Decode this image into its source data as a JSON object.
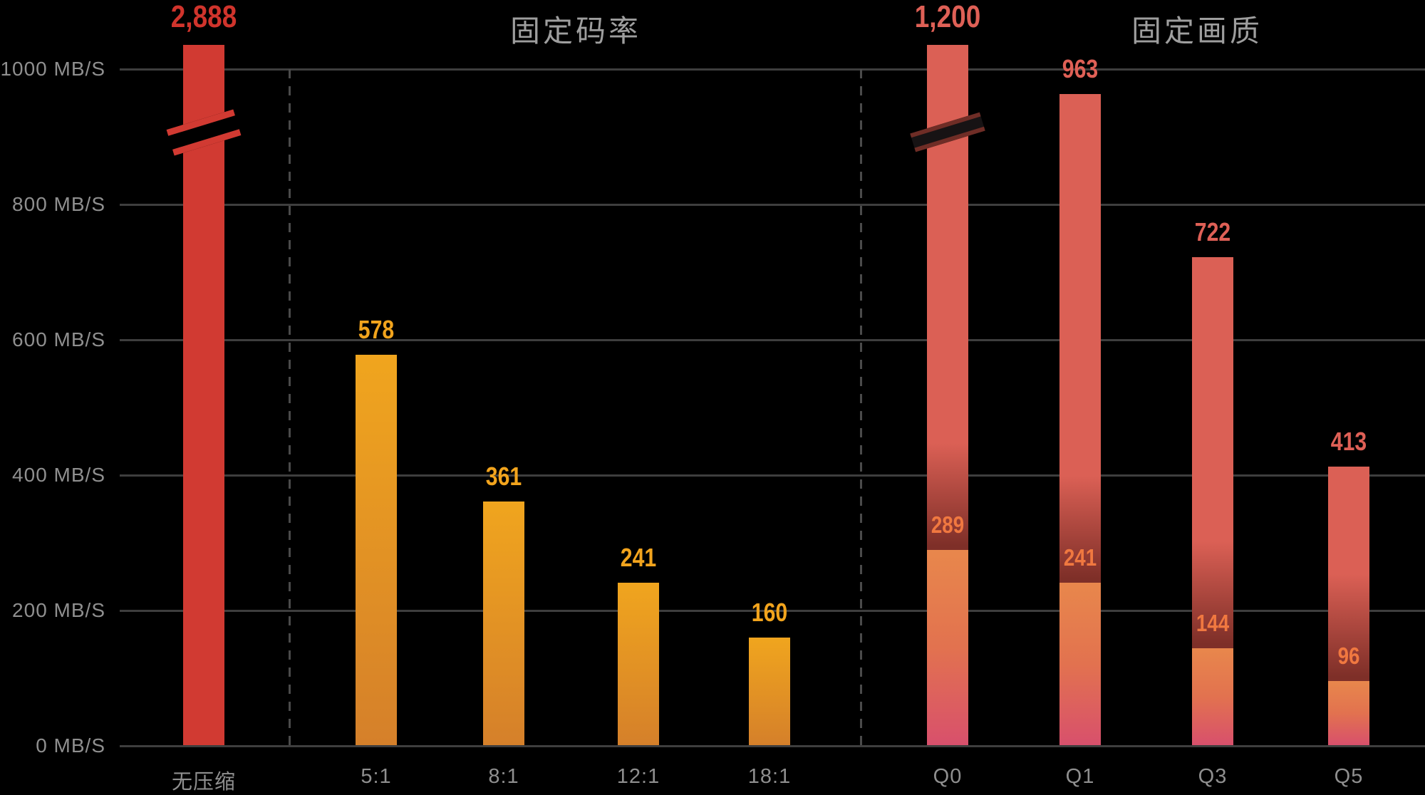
{
  "page": {
    "background": "#000000"
  },
  "chart_data": {
    "type": "bar",
    "unit": "MB/S",
    "y_ticks": [
      0,
      200,
      400,
      600,
      800,
      1000
    ],
    "y_tick_labels": [
      "0 MB/S",
      "200 MB/S",
      "400 MB/S",
      "600 MB/S",
      "800 MB/S",
      "1000 MB/S"
    ],
    "ylim": [
      0,
      1040
    ],
    "grid": true,
    "sections": [
      {
        "title": "固定码率",
        "categories": [
          "5:1",
          "8:1",
          "12:1",
          "18:1"
        ]
      },
      {
        "title": "固定画质",
        "categories": [
          "Q0",
          "Q1",
          "Q3",
          "Q5"
        ]
      }
    ],
    "bars": [
      {
        "id": "uncompressed",
        "category": "无压缩",
        "value": 2888,
        "label": "2,888",
        "style": "red",
        "clipped": true
      },
      {
        "id": "5-1",
        "category": "5:1",
        "value": 578,
        "label": "578",
        "style": "orange"
      },
      {
        "id": "8-1",
        "category": "8:1",
        "value": 361,
        "label": "361",
        "style": "orange"
      },
      {
        "id": "12-1",
        "category": "12:1",
        "value": 241,
        "label": "241",
        "style": "orange"
      },
      {
        "id": "18-1",
        "category": "18:1",
        "value": 160,
        "label": "160",
        "style": "orange"
      },
      {
        "id": "q0",
        "category": "Q0",
        "value": 1200,
        "label": "1,200",
        "style": "quality",
        "clipped": true,
        "inner_value": 289,
        "inner_label": "289"
      },
      {
        "id": "q1",
        "category": "Q1",
        "value": 963,
        "label": "963",
        "style": "quality",
        "inner_value": 241,
        "inner_label": "241"
      },
      {
        "id": "q3",
        "category": "Q3",
        "value": 722,
        "label": "722",
        "style": "quality",
        "inner_value": 144,
        "inner_label": "144"
      },
      {
        "id": "q5",
        "category": "Q5",
        "value": 413,
        "label": "413",
        "style": "quality",
        "inner_value": 96,
        "inner_label": "96"
      }
    ],
    "colors": {
      "red_bar": "#d13a32",
      "red_label": "#d0342c",
      "orange_top": "#f0a51e",
      "orange_bottom": "#d5802a",
      "orange_label": "#f2a41d",
      "salmon": "#db6055",
      "dark_maroon": "#7e2f28",
      "inner_orange": "#e8874c",
      "bottom_pink": "#d8506c",
      "inner_label": "#f07840",
      "quality_label": "#df6056",
      "axis_label": "#8f8f8f",
      "title": "#9e9e9e",
      "gridline": "#3e3e3e",
      "separator": "#4a4a4a",
      "background": "#000000"
    }
  }
}
